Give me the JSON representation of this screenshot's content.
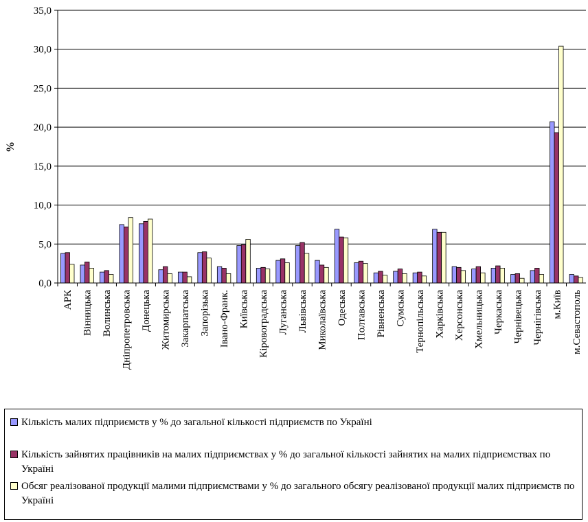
{
  "chart_data": {
    "type": "bar",
    "ylabel": "%",
    "ylim": [
      0,
      35
    ],
    "ytick_labels": [
      "0,0",
      "5,0",
      "10,0",
      "15,0",
      "20,0",
      "25,0",
      "30,0",
      "35,0"
    ],
    "categories": [
      "АРК",
      "Вінницька",
      "Волинська",
      "Дніпропетровська",
      "Донецька",
      "Житомирська",
      "Закарпатська",
      "Запорізька",
      "Івано-Франк.",
      "Київська",
      "Кіровоградська",
      "Луганська",
      "Львівська",
      "Миколаївська",
      "Одеська",
      "Полтавська",
      "Рівненська",
      "Сумська",
      "Тернопільська",
      "Харківська",
      "Херсонська",
      "Хмельницька",
      "Черкаська",
      "Чернівецька",
      "Чернігівська",
      "м.Київ",
      "м.Севастополь"
    ],
    "series": [
      {
        "name": "Кількість малих підприємств у % до загальної кількості підприємств по Україні",
        "color": "#9999ff",
        "values": [
          3.8,
          2.3,
          1.4,
          7.5,
          7.6,
          1.7,
          1.4,
          3.9,
          2.1,
          4.8,
          1.9,
          2.9,
          4.8,
          2.9,
          6.9,
          2.6,
          1.3,
          1.5,
          1.3,
          6.9,
          2.1,
          1.8,
          1.9,
          1.1,
          1.6,
          20.7,
          1.1
        ]
      },
      {
        "name": "Кількість зайнятих працівників на малих підприємствах у % до загальної кількості зайнятих  на малих підприємствах по Україні",
        "color": "#993366",
        "values": [
          3.9,
          2.7,
          1.6,
          7.2,
          7.9,
          2.1,
          1.4,
          4.0,
          1.9,
          4.9,
          2.0,
          3.1,
          5.2,
          2.3,
          5.9,
          2.8,
          1.5,
          1.8,
          1.4,
          6.5,
          2.0,
          2.1,
          2.2,
          1.2,
          1.9,
          19.3,
          0.9
        ]
      },
      {
        "name": "Обсяг реалізованої продукції малими підприємствами у % до загального обсягу реалізованої продукції  малих підприємств по Україні",
        "color": "#ffffcc",
        "values": [
          2.4,
          1.9,
          1.1,
          8.4,
          8.2,
          1.2,
          0.8,
          3.2,
          1.2,
          5.6,
          1.8,
          2.6,
          3.8,
          2.0,
          5.8,
          2.5,
          1.0,
          1.2,
          0.9,
          6.5,
          1.6,
          1.3,
          1.9,
          0.6,
          1.1,
          30.4,
          0.7
        ]
      }
    ],
    "grid": true,
    "legend_position": "bottom"
  }
}
